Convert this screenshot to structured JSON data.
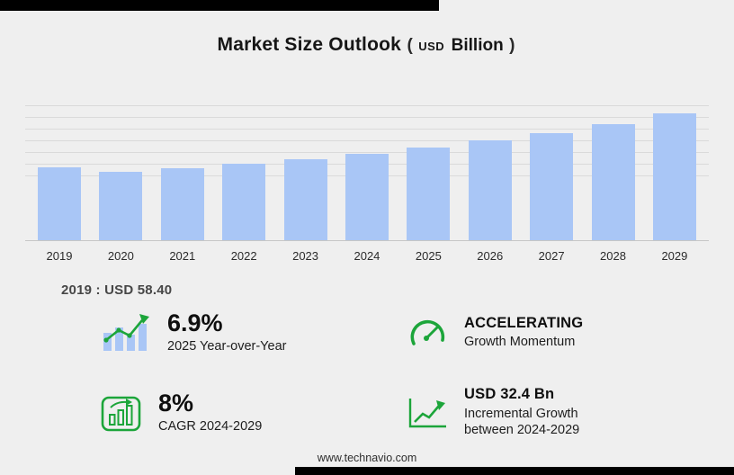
{
  "title": {
    "main": "Market Size Outlook",
    "paren_open": "(",
    "unit_small": "USD",
    "unit_big": "Billion",
    "paren_close": ")"
  },
  "chart_data": {
    "type": "bar",
    "title": "Market Size Outlook (USD Billion)",
    "categories": [
      "2019",
      "2020",
      "2021",
      "2022",
      "2023",
      "2024",
      "2025",
      "2026",
      "2027",
      "2028",
      "2029"
    ],
    "values": [
      58.4,
      54.8,
      57.6,
      61.3,
      64.5,
      69.4,
      74.2,
      79.9,
      85.9,
      93.2,
      101.8
    ],
    "xlabel": "",
    "ylabel": "USD Billion",
    "ylim": [
      0,
      108
    ],
    "grid": true,
    "legend": "none",
    "bar_color": "#a9c6f6"
  },
  "base_label": "2019 : USD  58.40",
  "stats": [
    {
      "value": "6.9%",
      "label": "2025 Year-over-Year",
      "icon": "bar-growth-icon"
    },
    {
      "value": "ACCELERATING",
      "label": "Growth Momentum",
      "icon": "speedometer-icon"
    },
    {
      "value": "8%",
      "label": "CAGR 2024-2029",
      "icon": "cagr-chart-icon"
    },
    {
      "value": "USD 32.4 Bn",
      "label": "Incremental Growth between 2024-2029",
      "icon": "incremental-growth-icon"
    }
  ],
  "footer": "www.technavio.com",
  "colors": {
    "accent_green": "#1ca53a",
    "bar_blue": "#a9c6f6",
    "background": "#efefef",
    "black_bar": "#000000"
  }
}
